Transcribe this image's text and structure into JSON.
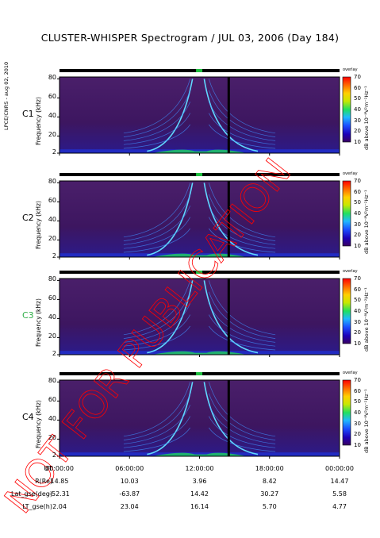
{
  "title": "CLUSTER-WHISPER Spectrogram / JUL 03, 2006 (Day 184)",
  "side_credit": "LPCE/CNRS - aug 02, 2010",
  "overlay_text": "NOT FOR PUBLICATION",
  "overlay_color": "#ff0000",
  "panel_labels": [
    "C1",
    "C2",
    "C3",
    "C4"
  ],
  "panel_label_colors": [
    "#000000",
    "#000000",
    "#2fae48",
    "#000000"
  ],
  "y_axis_label": "Frequency (kHz)",
  "colorbar_label": "dB above 10⁻⁸V²m⁻²Hz⁻¹",
  "colorbar_ticks": [
    "70",
    "60",
    "50",
    "40",
    "30",
    "20",
    "10"
  ],
  "colorbar_header": "overlay",
  "ephemeris": {
    "labels": [
      "UT",
      "R(Re)",
      "Lat_gse(deg)",
      "LT_gse(h)"
    ],
    "times": [
      "00:00:00",
      "06:00:00",
      "12:00:00",
      "18:00:00",
      "00:00:00"
    ],
    "R": [
      "14.85",
      "10.03",
      "3.96",
      "8.42",
      "14.47"
    ],
    "Lat": [
      "-52.31",
      "-63.87",
      "14.42",
      "30.27",
      "5.58"
    ],
    "LT": [
      "2.04",
      "23.04",
      "16.14",
      "5.70",
      "4.77"
    ]
  },
  "chart_data": [
    {
      "type": "heatmap",
      "panel": "C1",
      "title": "",
      "xlabel": "",
      "ylabel": "Frequency (kHz)",
      "x_ticks": [
        "00:00:00",
        "06:00:00",
        "12:00:00",
        "18:00:00",
        "00:00:00"
      ],
      "y_ticks": [
        2,
        20,
        40,
        60,
        80
      ],
      "ylim": [
        2,
        82
      ],
      "zlim": [
        10,
        70
      ]
    },
    {
      "type": "heatmap",
      "panel": "C2",
      "title": "",
      "xlabel": "",
      "ylabel": "Frequency (kHz)",
      "x_ticks": [
        "00:00:00",
        "06:00:00",
        "12:00:00",
        "18:00:00",
        "00:00:00"
      ],
      "y_ticks": [
        2,
        20,
        40,
        60,
        80
      ],
      "ylim": [
        2,
        82
      ],
      "zlim": [
        10,
        70
      ]
    },
    {
      "type": "heatmap",
      "panel": "C3",
      "title": "",
      "xlabel": "",
      "ylabel": "Frequency (kHz)",
      "x_ticks": [
        "00:00:00",
        "06:00:00",
        "12:00:00",
        "18:00:00",
        "00:00:00"
      ],
      "y_ticks": [
        2,
        20,
        40,
        60,
        80
      ],
      "ylim": [
        2,
        82
      ],
      "zlim": [
        10,
        70
      ]
    },
    {
      "type": "heatmap",
      "panel": "C4",
      "title": "",
      "xlabel": "",
      "ylabel": "Frequency (kHz)",
      "x_ticks": [
        "00:00:00",
        "06:00:00",
        "12:00:00",
        "18:00:00",
        "00:00:00"
      ],
      "y_ticks": [
        2,
        20,
        40,
        60,
        80
      ],
      "ylim": [
        2,
        82
      ],
      "zlim": [
        10,
        70
      ]
    }
  ]
}
